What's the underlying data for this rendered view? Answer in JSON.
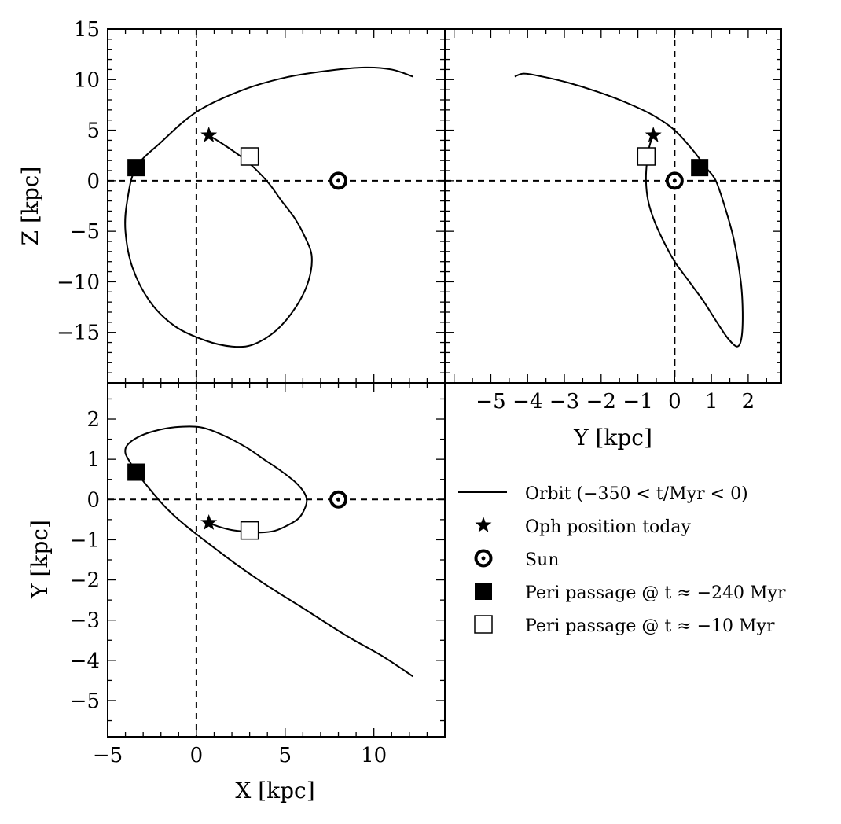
{
  "chart_data": {
    "type": "line",
    "legend_placement": "bottom-right (empty fourth quadrant)",
    "grid": false,
    "series": [
      {
        "name": "Orbit (−350 < t/Myr < 0)"
      },
      {
        "name": "Oph position today"
      },
      {
        "name": "Sun"
      },
      {
        "name": "Peri passage @ t ≈ −240 Myr"
      },
      {
        "name": "Peri passage @ t ≈ −10 Myr"
      }
    ],
    "legend": [
      {
        "label": "Orbit (−350 < t/Myr < 0)",
        "marker": "line"
      },
      {
        "label": "Oph position today",
        "marker": "star"
      },
      {
        "label": "Sun",
        "marker": "sun"
      },
      {
        "label": "Peri passage @ t ≈ −240 Myr",
        "marker": "filled-square"
      },
      {
        "label": "Peri passage @ t ≈ −10 Myr",
        "marker": "open-square"
      }
    ],
    "markers": {
      "oph_today": {
        "X": 0.7,
        "Y": -0.58,
        "Z": 4.5
      },
      "sun": {
        "X": 8.0,
        "Y": 0.0,
        "Z": 0.0
      },
      "peri_240": {
        "X": -3.4,
        "Y": 0.68,
        "Z": 1.3
      },
      "peri_10": {
        "X": 3.0,
        "Y": -0.77,
        "Z": 2.4
      }
    },
    "panels": [
      {
        "id": "xz",
        "xlabel": "",
        "ylabel": "Z [kpc]",
        "xlim": [
          -5,
          14
        ],
        "ylim": [
          -20,
          15
        ],
        "yticks": [
          15,
          10,
          5,
          0,
          -5,
          -10,
          -15
        ],
        "ytick_labels": [
          "15",
          "10",
          "5",
          "0",
          "−5",
          "−10",
          "−15"
        ],
        "orbit": {
          "x": [
            0.7,
            1.6,
            2.5,
            3.3,
            4.1,
            4.8,
            5.5,
            6.1,
            6.5,
            6.3,
            5.6,
            4.5,
            3.2,
            2.0,
            0.5,
            -1.2,
            -2.6,
            -3.6,
            -4.0,
            -3.9,
            -3.4,
            -2.0,
            0.0,
            2.5,
            5.0,
            7.5,
            9.5,
            11.0,
            12.2
          ],
          "y": [
            4.5,
            3.5,
            2.4,
            1.2,
            -0.3,
            -2.0,
            -3.6,
            -5.5,
            -7.5,
            -10.0,
            -12.5,
            -14.8,
            -16.2,
            -16.4,
            -15.8,
            -14.4,
            -12.0,
            -8.6,
            -5.0,
            -2.0,
            1.3,
            3.8,
            6.8,
            8.9,
            10.2,
            10.9,
            11.2,
            11.0,
            10.3
          ]
        },
        "markers": [
          {
            "kind": "star",
            "x": 0.7,
            "y": 4.5
          },
          {
            "kind": "sun",
            "x": 8.0,
            "y": 0.0
          },
          {
            "kind": "filled-square",
            "x": -3.4,
            "y": 1.3
          },
          {
            "kind": "open-square",
            "x": 3.0,
            "y": 2.4
          }
        ]
      },
      {
        "id": "yz",
        "xlabel": "Y [kpc]",
        "ylabel": "",
        "xlim": [
          -6.25,
          2.9
        ],
        "ylim": [
          -20,
          15
        ],
        "xticks": [
          -5,
          -4,
          -3,
          -2,
          -1,
          0,
          1,
          2
        ],
        "xtick_labels": [
          "−5",
          "−4",
          "−3",
          "−2",
          "−1",
          "0",
          "1",
          "2"
        ],
        "orbit": {
          "x": [
            -0.58,
            -0.68,
            -0.75,
            -0.78,
            -0.72,
            -0.55,
            -0.3,
            0.0,
            0.4,
            0.8,
            1.15,
            1.45,
            1.7,
            1.82,
            1.85,
            1.8,
            1.62,
            1.4,
            1.12,
            0.85,
            0.5,
            0.0,
            -0.6,
            -1.3,
            -2.1,
            -2.9,
            -3.6,
            -4.1,
            -4.35
          ],
          "y": [
            4.5,
            3.5,
            2.0,
            0.0,
            -2.0,
            -4.0,
            -6.0,
            -8.0,
            -10.0,
            -12.0,
            -14.0,
            -15.6,
            -16.4,
            -15.5,
            -13.0,
            -10.0,
            -6.0,
            -3.0,
            0.0,
            1.3,
            3.0,
            5.0,
            6.5,
            7.7,
            8.8,
            9.7,
            10.3,
            10.6,
            10.3
          ]
        },
        "markers": [
          {
            "kind": "star",
            "x": -0.58,
            "y": 4.5
          },
          {
            "kind": "sun",
            "x": 0.0,
            "y": 0.0
          },
          {
            "kind": "filled-square",
            "x": 0.68,
            "y": 1.3
          },
          {
            "kind": "open-square",
            "x": -0.77,
            "y": 2.4
          }
        ]
      },
      {
        "id": "xy",
        "xlabel": "X [kpc]",
        "ylabel": "Y [kpc]",
        "xlim": [
          -5,
          14
        ],
        "ylim": [
          -5.9,
          2.9
        ],
        "xticks": [
          -5,
          0,
          5,
          10
        ],
        "xtick_labels": [
          "−5",
          "0",
          "5",
          "10"
        ],
        "yticks": [
          2,
          1,
          0,
          -1,
          -2,
          -3,
          -4,
          -5
        ],
        "ytick_labels": [
          "2",
          "1",
          "0",
          "−1",
          "−2",
          "−3",
          "−4",
          "−5"
        ],
        "orbit": {
          "x": [
            0.7,
            1.3,
            2.0,
            2.8,
            3.6,
            4.4,
            5.1,
            5.8,
            6.2,
            6.1,
            5.6,
            4.8,
            3.8,
            2.8,
            1.5,
            0.2,
            -1.2,
            -2.4,
            -3.3,
            -3.9,
            -4.0,
            -3.7,
            -3.4,
            -1.5,
            1.0,
            3.5,
            6.0,
            8.5,
            10.5,
            12.2
          ],
          "y": [
            -0.58,
            -0.68,
            -0.76,
            -0.8,
            -0.82,
            -0.78,
            -0.65,
            -0.45,
            -0.1,
            0.15,
            0.42,
            0.7,
            1.0,
            1.3,
            1.6,
            1.8,
            1.8,
            1.7,
            1.55,
            1.35,
            1.15,
            0.9,
            0.68,
            -0.3,
            -1.2,
            -2.0,
            -2.7,
            -3.4,
            -3.9,
            -4.4
          ]
        },
        "markers": [
          {
            "kind": "star",
            "x": 0.7,
            "y": -0.58
          },
          {
            "kind": "sun",
            "x": 8.0,
            "y": 0.0
          },
          {
            "kind": "filled-square",
            "x": -3.4,
            "y": 0.68
          },
          {
            "kind": "open-square",
            "x": 3.0,
            "y": -0.77
          }
        ]
      }
    ]
  }
}
